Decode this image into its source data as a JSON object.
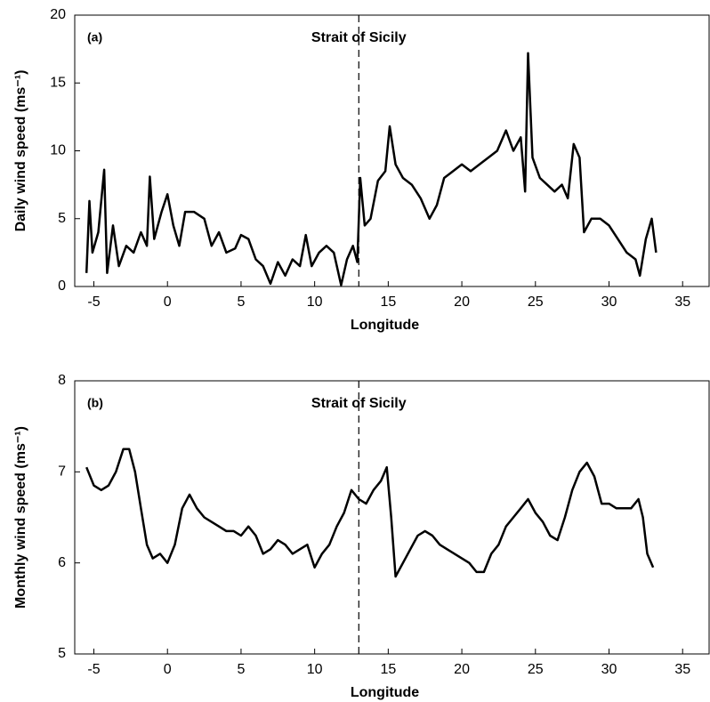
{
  "chart_data": [
    {
      "type": "line",
      "panel_label": "(a)",
      "xlabel": "Longitude",
      "ylabel": "Daily wind speed (ms⁻¹)",
      "vline": 13,
      "vline_label": "Strait of Sicily",
      "color": "#000000",
      "xlim": [
        -6.3,
        36.8
      ],
      "xticks": [
        -5,
        0,
        5,
        10,
        15,
        20,
        25,
        30,
        35
      ],
      "ylim": [
        0,
        20
      ],
      "yticks": [
        0,
        5,
        10,
        15,
        20
      ],
      "x": [
        -5.5,
        -5.3,
        -5.1,
        -4.7,
        -4.3,
        -4.1,
        -3.7,
        -3.3,
        -2.8,
        -2.3,
        -1.8,
        -1.4,
        -1.2,
        -0.9,
        -0.4,
        0,
        0.4,
        0.8,
        1.2,
        1.8,
        2.5,
        3.0,
        3.5,
        4.0,
        4.6,
        5.0,
        5.5,
        6.0,
        6.5,
        7.0,
        7.5,
        8.0,
        8.5,
        9.0,
        9.4,
        9.8,
        10.3,
        10.8,
        11.3,
        11.8,
        12.2,
        12.6,
        12.9,
        13.1,
        13.4,
        13.8,
        14.3,
        14.8,
        15.1,
        15.5,
        16.0,
        16.6,
        17.2,
        17.8,
        18.3,
        18.8,
        19.4,
        20.0,
        20.6,
        21.2,
        21.8,
        22.4,
        23.0,
        23.5,
        24.0,
        24.3,
        24.5,
        24.8,
        25.3,
        25.8,
        26.3,
        26.8,
        27.2,
        27.6,
        28.0,
        28.3,
        28.8,
        29.4,
        30.0,
        30.6,
        31.2,
        31.8,
        32.1,
        32.5,
        32.9,
        33.2
      ],
      "values": [
        1.0,
        6.3,
        2.5,
        4.0,
        8.6,
        1.0,
        4.5,
        1.5,
        3.0,
        2.5,
        4.0,
        3.0,
        8.1,
        3.5,
        5.5,
        6.8,
        4.5,
        3.0,
        5.5,
        5.5,
        5.0,
        3.0,
        4.0,
        2.5,
        2.8,
        3.8,
        3.5,
        2.0,
        1.5,
        0.2,
        1.8,
        0.8,
        2.0,
        1.5,
        3.8,
        1.5,
        2.5,
        3.0,
        2.5,
        0.1,
        2.0,
        3.0,
        1.8,
        8.0,
        4.5,
        5.0,
        7.8,
        8.5,
        11.8,
        9.0,
        8.0,
        7.5,
        6.5,
        5.0,
        6.0,
        8.0,
        8.5,
        9.0,
        8.5,
        9.0,
        9.5,
        10.0,
        11.5,
        10.0,
        11.0,
        7.0,
        17.2,
        9.5,
        8.0,
        7.5,
        7.0,
        7.5,
        6.5,
        10.5,
        9.5,
        4.0,
        5.0,
        5.0,
        4.5,
        3.5,
        2.5,
        2.0,
        0.8,
        3.5,
        5.0,
        2.5
      ]
    },
    {
      "type": "line",
      "panel_label": "(b)",
      "xlabel": "Longitude",
      "ylabel": "Monthly wind speed (ms⁻¹)",
      "vline": 13,
      "vline_label": "Strait of Sicily",
      "color": "#000000",
      "xlim": [
        -6.3,
        36.8
      ],
      "xticks": [
        -5,
        0,
        5,
        10,
        15,
        20,
        25,
        30,
        35
      ],
      "ylim": [
        5,
        8
      ],
      "yticks": [
        5,
        6,
        7,
        8
      ],
      "x": [
        -5.5,
        -5.0,
        -4.5,
        -4.0,
        -3.5,
        -3.0,
        -2.6,
        -2.2,
        -1.8,
        -1.4,
        -1.0,
        -0.5,
        0.0,
        0.5,
        1.0,
        1.5,
        2.0,
        2.5,
        3.0,
        3.5,
        4.0,
        4.5,
        5.0,
        5.5,
        6.0,
        6.5,
        7.0,
        7.5,
        8.0,
        8.5,
        9.0,
        9.5,
        10.0,
        10.5,
        11.0,
        11.5,
        12.0,
        12.5,
        13.0,
        13.5,
        14.0,
        14.5,
        14.9,
        15.2,
        15.5,
        16.0,
        16.5,
        17.0,
        17.5,
        18.0,
        18.5,
        19.0,
        19.5,
        20.0,
        20.5,
        21.0,
        21.5,
        22.0,
        22.5,
        23.0,
        23.5,
        24.0,
        24.5,
        25.0,
        25.5,
        26.0,
        26.5,
        27.0,
        27.5,
        28.0,
        28.5,
        29.0,
        29.5,
        30.0,
        30.5,
        31.0,
        31.5,
        32.0,
        32.3,
        32.6,
        33.0
      ],
      "values": [
        7.05,
        6.85,
        6.8,
        6.85,
        7.0,
        7.25,
        7.25,
        7.0,
        6.6,
        6.2,
        6.05,
        6.1,
        6.0,
        6.2,
        6.6,
        6.75,
        6.6,
        6.5,
        6.45,
        6.4,
        6.35,
        6.35,
        6.3,
        6.4,
        6.3,
        6.1,
        6.15,
        6.25,
        6.2,
        6.1,
        6.15,
        6.2,
        5.95,
        6.1,
        6.2,
        6.4,
        6.55,
        6.8,
        6.7,
        6.65,
        6.8,
        6.9,
        7.05,
        6.5,
        5.85,
        6.0,
        6.15,
        6.3,
        6.35,
        6.3,
        6.2,
        6.15,
        6.1,
        6.05,
        6.0,
        5.9,
        5.9,
        6.1,
        6.2,
        6.4,
        6.5,
        6.6,
        6.7,
        6.55,
        6.45,
        6.3,
        6.25,
        6.5,
        6.8,
        7.0,
        7.1,
        6.95,
        6.65,
        6.65,
        6.6,
        6.6,
        6.6,
        6.7,
        6.5,
        6.1,
        5.95
      ]
    }
  ]
}
